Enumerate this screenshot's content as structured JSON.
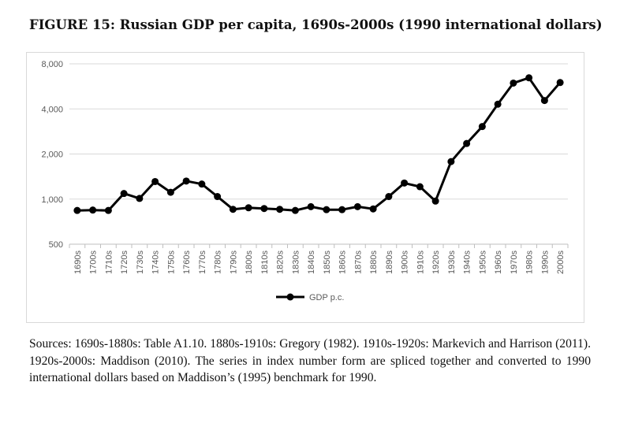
{
  "figure": {
    "title": "FIGURE 15: Russian GDP per capita, 1690s-2000s (1990 international dollars)",
    "sources": "Sources: 1690s-1880s: Table A1.10. 1880s-1910s: Gregory (1982). 1910s-1920s: Markevich and Harrison (2011). 1920s-2000s: Maddison (2010). The series in index number form are spliced together and converted to 1990 international dollars based on Maddison’s (1995) benchmark for 1990."
  },
  "chart_data": {
    "type": "line",
    "title": "",
    "xlabel": "",
    "ylabel": "",
    "y_scale": "log2",
    "ylim": [
      500,
      8000
    ],
    "y_ticks": [
      500,
      1000,
      2000,
      4000,
      8000
    ],
    "y_tick_labels": [
      "500",
      "1,000",
      "2,000",
      "4,000",
      "8,000"
    ],
    "grid": "horizontal gridlines on",
    "legend_position": "bottom",
    "categories": [
      "1690s",
      "1700s",
      "1710s",
      "1720s",
      "1730s",
      "1740s",
      "1750s",
      "1760s",
      "1770s",
      "1780s",
      "1790s",
      "1800s",
      "1810s",
      "1820s",
      "1830s",
      "1840s",
      "1850s",
      "1860s",
      "1870s",
      "1880s",
      "1890s",
      "1900s",
      "1910s",
      "1920s",
      "1930s",
      "1940s",
      "1950s",
      "1960s",
      "1970s",
      "1980s",
      "1990s",
      "2000s"
    ],
    "series": [
      {
        "name": "GDP p.c.",
        "color": "#000000",
        "values": [
          840,
          845,
          840,
          1090,
          1010,
          1310,
          1110,
          1320,
          1260,
          1040,
          855,
          875,
          865,
          855,
          840,
          890,
          850,
          850,
          890,
          860,
          1040,
          1280,
          1210,
          970,
          1780,
          2350,
          3050,
          4300,
          5950,
          6450,
          4550,
          6000
        ]
      }
    ]
  }
}
